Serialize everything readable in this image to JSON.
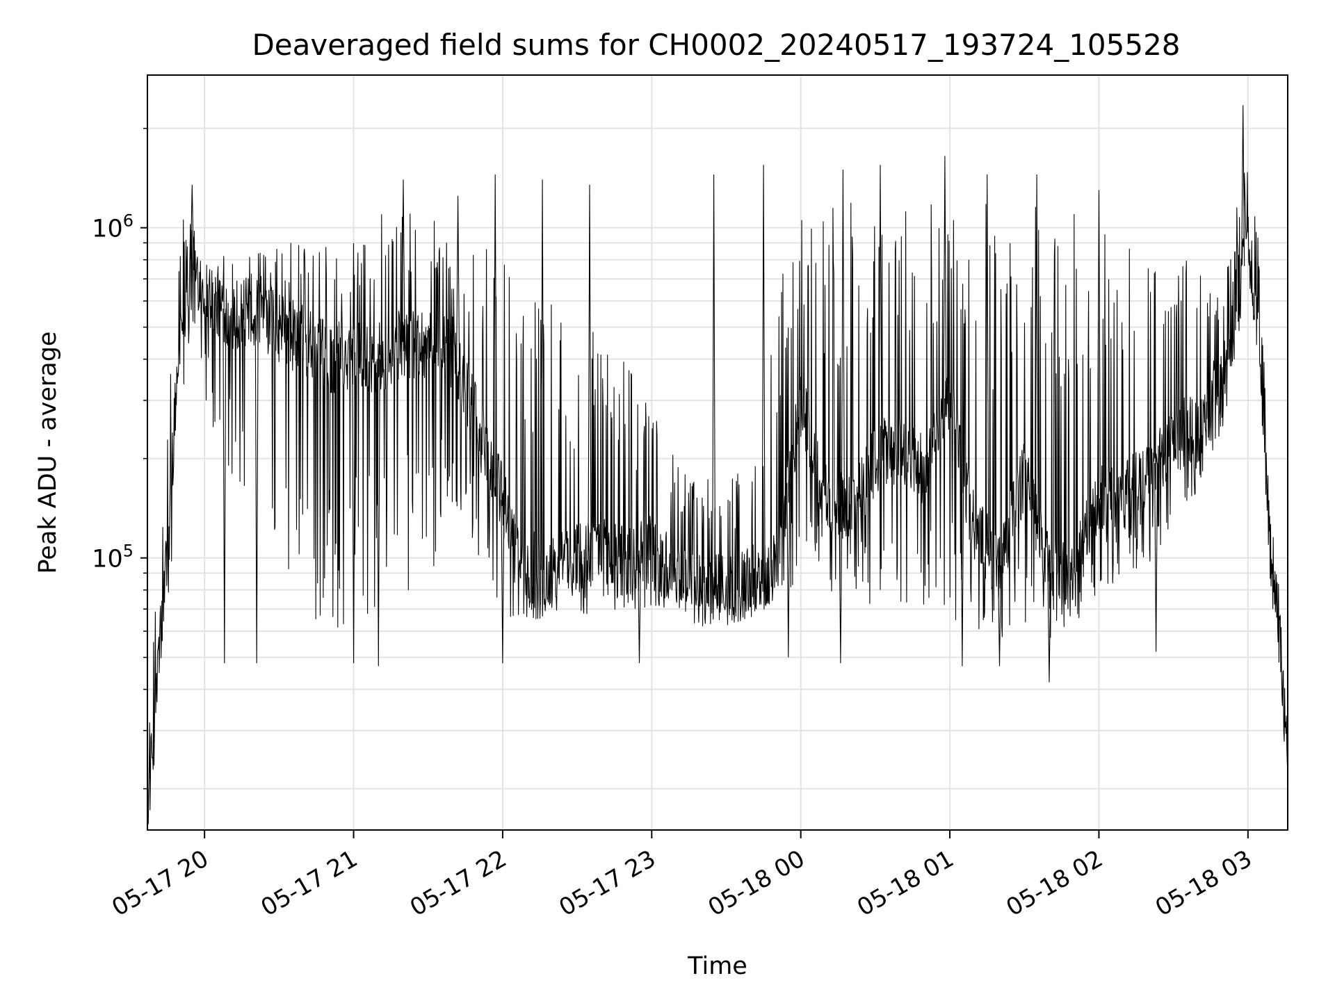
{
  "chart_data": {
    "type": "line",
    "title": "Deaveraged field sums for CH0002_20240517_193724_105528",
    "xlabel": "Time",
    "ylabel": "Peak ADU - average",
    "yscale": "log",
    "grid": true,
    "legend": "none",
    "line_color": "#000000",
    "xlim": [
      "2024-05-17 19:37",
      "2024-05-18 03:16"
    ],
    "ylim": [
      15000,
      2900000
    ],
    "x_ticks": [
      {
        "t": "2024-05-17 20:00",
        "label": "05-17 20"
      },
      {
        "t": "2024-05-17 21:00",
        "label": "05-17 21"
      },
      {
        "t": "2024-05-17 22:00",
        "label": "05-17 22"
      },
      {
        "t": "2024-05-17 23:00",
        "label": "05-17 23"
      },
      {
        "t": "2024-05-18 00:00",
        "label": "05-18 00"
      },
      {
        "t": "2024-05-18 01:00",
        "label": "05-18 01"
      },
      {
        "t": "2024-05-18 02:00",
        "label": "05-18 02"
      },
      {
        "t": "2024-05-18 03:00",
        "label": "05-18 03"
      }
    ],
    "y_ticks": [
      {
        "value": 100000,
        "base": "10",
        "exp": "5"
      },
      {
        "value": 1000000,
        "base": "10",
        "exp": "6"
      }
    ],
    "envelope_time": [
      "2024-05-17 19:37",
      "2024-05-17 19:39",
      "2024-05-17 19:41",
      "2024-05-17 19:44",
      "2024-05-17 19:47",
      "2024-05-17 19:51",
      "2024-05-17 19:55",
      "2024-05-17 20:00",
      "2024-05-17 20:10",
      "2024-05-17 20:20",
      "2024-05-17 20:30",
      "2024-05-17 20:40",
      "2024-05-17 20:50",
      "2024-05-17 21:00",
      "2024-05-17 21:10",
      "2024-05-17 21:20",
      "2024-05-17 21:30",
      "2024-05-17 21:40",
      "2024-05-17 21:50",
      "2024-05-17 22:00",
      "2024-05-17 22:10",
      "2024-05-17 22:20",
      "2024-05-17 22:30",
      "2024-05-17 22:40",
      "2024-05-17 22:50",
      "2024-05-17 23:00",
      "2024-05-17 23:10",
      "2024-05-17 23:20",
      "2024-05-17 23:30",
      "2024-05-17 23:40",
      "2024-05-17 23:50",
      "2024-05-18 00:00",
      "2024-05-18 00:10",
      "2024-05-18 00:20",
      "2024-05-18 00:30",
      "2024-05-18 00:40",
      "2024-05-18 00:50",
      "2024-05-18 01:00",
      "2024-05-18 01:10",
      "2024-05-18 01:20",
      "2024-05-18 01:30",
      "2024-05-18 01:40",
      "2024-05-18 01:50",
      "2024-05-18 02:00",
      "2024-05-18 02:10",
      "2024-05-18 02:20",
      "2024-05-18 02:30",
      "2024-05-18 02:40",
      "2024-05-18 02:50",
      "2024-05-18 02:55",
      "2024-05-18 03:00",
      "2024-05-18 03:03",
      "2024-05-18 03:06",
      "2024-05-18 03:09",
      "2024-05-18 03:12",
      "2024-05-18 03:14",
      "2024-05-18 03:16"
    ],
    "envelope_median": [
      18000,
      25000,
      45000,
      80000,
      200000,
      600000,
      800000,
      650000,
      550000,
      550000,
      500000,
      450000,
      400000,
      420000,
      400000,
      450000,
      450000,
      420000,
      250000,
      150000,
      95000,
      90000,
      100000,
      110000,
      95000,
      110000,
      85000,
      80000,
      80000,
      85000,
      95000,
      300000,
      150000,
      140000,
      200000,
      220000,
      180000,
      300000,
      120000,
      95000,
      180000,
      90000,
      90000,
      150000,
      150000,
      180000,
      230000,
      250000,
      350000,
      600000,
      900000,
      600000,
      300000,
      100000,
      70000,
      40000,
      25000
    ],
    "envelope_low": [
      16000,
      20000,
      30000,
      55000,
      100000,
      300000,
      500000,
      300000,
      150000,
      120000,
      80000,
      70000,
      60000,
      60000,
      70000,
      80000,
      80000,
      150000,
      100000,
      65000,
      65000,
      65000,
      65000,
      65000,
      70000,
      70000,
      70000,
      70000,
      70000,
      70000,
      70000,
      85000,
      80000,
      75000,
      70000,
      70000,
      70000,
      65000,
      55000,
      55000,
      60000,
      55000,
      60000,
      75000,
      90000,
      90000,
      130000,
      150000,
      250000,
      400000,
      700000,
      500000,
      200000,
      85000,
      60000,
      35000,
      22000
    ],
    "envelope_high": [
      25000,
      50000,
      100000,
      200000,
      500000,
      1100000,
      1100000,
      1000000,
      900000,
      900000,
      900000,
      1000000,
      1000000,
      1000000,
      1300000,
      1300000,
      1200000,
      1000000,
      900000,
      800000,
      700000,
      600000,
      500000,
      500000,
      400000,
      300000,
      200000,
      180000,
      170000,
      200000,
      700000,
      1100000,
      1200000,
      1200000,
      1200000,
      1200000,
      1200000,
      1300000,
      1300000,
      1200000,
      1200000,
      1200000,
      1100000,
      1100000,
      1000000,
      900000,
      800000,
      800000,
      900000,
      1100000,
      2000000,
      1300000,
      600000,
      150000,
      90000,
      55000,
      30000
    ],
    "spike_ceiling": [
      {
        "t": "2024-05-17 19:55",
        "value": 1350000
      },
      {
        "t": "2024-05-17 21:20",
        "value": 1400000
      },
      {
        "t": "2024-05-17 21:42",
        "value": 1250000
      },
      {
        "t": "2024-05-17 21:57",
        "value": 1450000
      },
      {
        "t": "2024-05-17 22:16",
        "value": 1400000
      },
      {
        "t": "2024-05-17 22:35",
        "value": 1350000
      },
      {
        "t": "2024-05-17 23:25",
        "value": 1450000
      },
      {
        "t": "2024-05-17 23:45",
        "value": 1550000
      },
      {
        "t": "2024-05-18 00:17",
        "value": 1500000
      },
      {
        "t": "2024-05-18 00:32",
        "value": 1550000
      },
      {
        "t": "2024-05-18 00:58",
        "value": 1650000
      },
      {
        "t": "2024-05-18 01:15",
        "value": 1450000
      },
      {
        "t": "2024-05-18 01:35",
        "value": 1450000
      },
      {
        "t": "2024-05-18 02:00",
        "value": 1300000
      },
      {
        "t": "2024-05-18 02:58",
        "value": 2350000
      }
    ],
    "spike_floor": [
      {
        "t": "2024-05-17 20:08",
        "value": 48000
      },
      {
        "t": "2024-05-17 20:21",
        "value": 48000
      },
      {
        "t": "2024-05-17 21:00",
        "value": 48000
      },
      {
        "t": "2024-05-17 21:10",
        "value": 47000
      },
      {
        "t": "2024-05-17 22:00",
        "value": 48000
      },
      {
        "t": "2024-05-17 22:55",
        "value": 48000
      },
      {
        "t": "2024-05-17 23:55",
        "value": 50000
      },
      {
        "t": "2024-05-18 00:16",
        "value": 48000
      },
      {
        "t": "2024-05-18 01:05",
        "value": 47000
      },
      {
        "t": "2024-05-18 01:20",
        "value": 47000
      },
      {
        "t": "2024-05-18 01:40",
        "value": 42000
      },
      {
        "t": "2024-05-18 02:23",
        "value": 52000
      }
    ]
  }
}
